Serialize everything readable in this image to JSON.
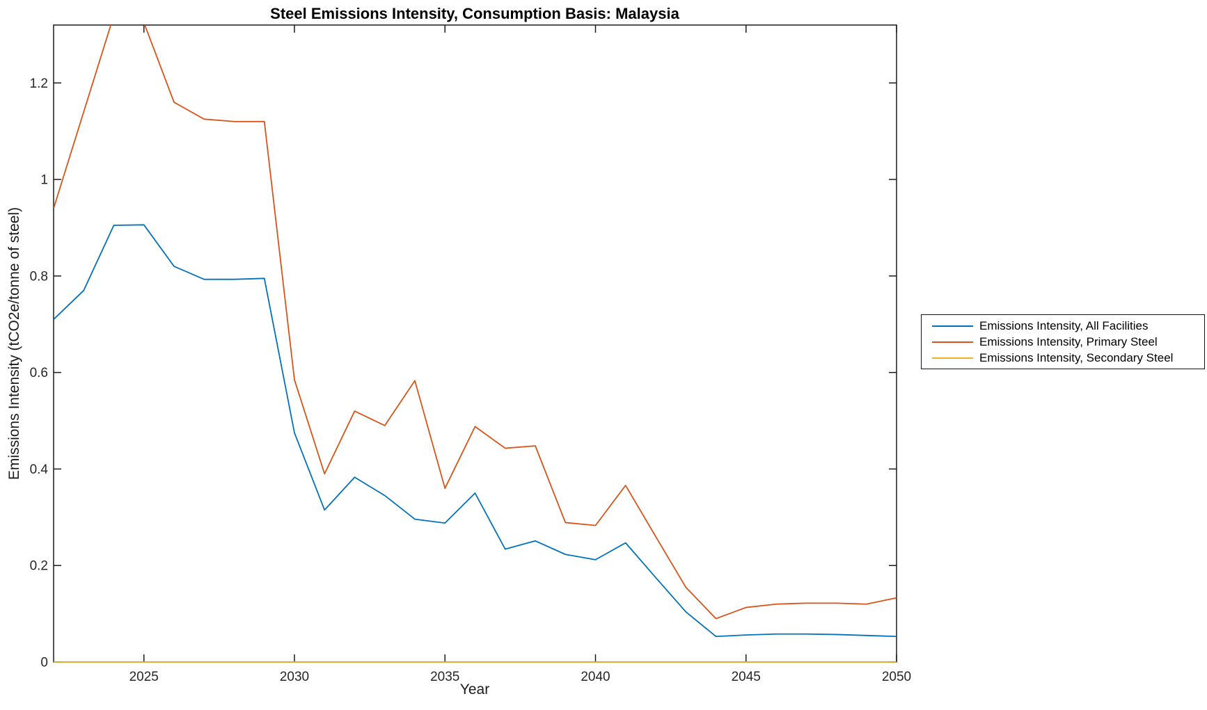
{
  "page": {
    "background_color": "#ffffff"
  },
  "chart_data": {
    "type": "line",
    "title": "Steel Emissions Intensity, Consumption Basis: Malaysia",
    "xlabel": "Year",
    "ylabel": "Emissions Intensity (tCO2e/tonne of steel)",
    "xlim": [
      2022,
      2050
    ],
    "ylim": [
      0,
      1.32
    ],
    "x_ticks": [
      2025,
      2030,
      2035,
      2040,
      2045,
      2050
    ],
    "x_tick_labels": [
      "2025",
      "2030",
      "2035",
      "2040",
      "2045",
      "2050"
    ],
    "y_ticks": [
      0,
      0.2,
      0.4,
      0.6,
      0.8,
      1,
      1.2
    ],
    "y_tick_labels": [
      "0",
      "0.2",
      "0.4",
      "0.6",
      "0.8",
      "1",
      "1.2"
    ],
    "grid": false,
    "legend_position": "outside-right",
    "axis_color": "#1a1a1a",
    "x": [
      2022,
      2023,
      2024,
      2025,
      2026,
      2027,
      2028,
      2029,
      2030,
      2031,
      2032,
      2033,
      2034,
      2035,
      2036,
      2037,
      2038,
      2039,
      2040,
      2041,
      2042,
      2043,
      2044,
      2045,
      2046,
      2047,
      2048,
      2049,
      2050
    ],
    "series": [
      {
        "name": "Emissions Intensity, All Facilities",
        "color": "#0072BD",
        "values": [
          0.71,
          0.77,
          0.905,
          0.906,
          0.82,
          0.793,
          0.793,
          0.795,
          0.475,
          0.315,
          0.383,
          0.345,
          0.296,
          0.288,
          0.35,
          0.234,
          0.251,
          0.223,
          0.212,
          0.247,
          0.175,
          0.104,
          0.053,
          0.056,
          0.058,
          0.058,
          0.057,
          0.055,
          0.053
        ]
      },
      {
        "name": "Emissions Intensity, Primary Steel",
        "color": "#D95319",
        "values": [
          0.94,
          1.14,
          1.34,
          1.325,
          1.16,
          1.125,
          1.12,
          1.12,
          0.585,
          0.39,
          0.52,
          0.49,
          0.583,
          0.36,
          0.488,
          0.443,
          0.448,
          0.289,
          0.283,
          0.366,
          0.26,
          0.155,
          0.09,
          0.113,
          0.12,
          0.122,
          0.122,
          0.12,
          0.133
        ]
      },
      {
        "name": "Emissions Intensity, Secondary Steel",
        "color": "#EDB120",
        "values": [
          0,
          0,
          0,
          0,
          0,
          0,
          0,
          0,
          0,
          0,
          0,
          0,
          0,
          0,
          0,
          0,
          0,
          0,
          0,
          0,
          0,
          0,
          0,
          0,
          0,
          0,
          0,
          0,
          0
        ]
      }
    ]
  }
}
